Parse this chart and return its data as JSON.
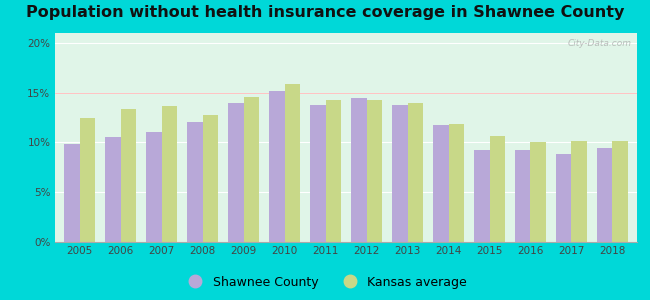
{
  "title": "Population without health insurance coverage in Shawnee County",
  "years": [
    2005,
    2006,
    2007,
    2008,
    2009,
    2010,
    2011,
    2012,
    2013,
    2014,
    2015,
    2016,
    2017,
    2018
  ],
  "shawnee": [
    9.8,
    10.5,
    11.0,
    12.0,
    14.0,
    15.2,
    13.7,
    14.5,
    13.7,
    11.7,
    9.2,
    9.2,
    8.8,
    9.4
  ],
  "kansas": [
    12.4,
    13.3,
    13.6,
    12.7,
    14.6,
    15.9,
    14.3,
    14.3,
    13.9,
    11.8,
    10.6,
    10.0,
    10.1,
    10.1
  ],
  "shawnee_color": "#b8a8d8",
  "kansas_color": "#c8d888",
  "background_outer": "#00d8d8",
  "background_inner": "#e0f5e8",
  "title_fontsize": 11.5,
  "ylim": [
    0,
    21
  ],
  "yticks": [
    0,
    5,
    10,
    15,
    20
  ],
  "ytick_labels": [
    "0%",
    "5%",
    "10%",
    "15%",
    "20%"
  ],
  "legend_shawnee": "Shawnee County",
  "legend_kansas": "Kansas average",
  "bar_width": 0.38,
  "watermark": "City-Data.com"
}
